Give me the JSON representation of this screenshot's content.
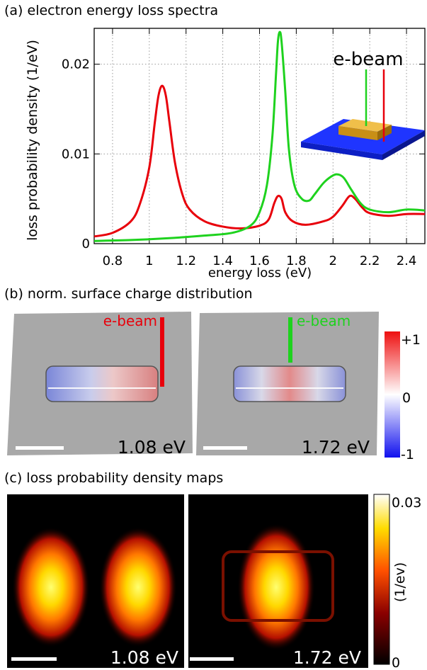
{
  "panels": {
    "a": {
      "title": "(a) electron energy loss spectra"
    },
    "b": {
      "title": "(b) norm. surface charge distribution",
      "beam_label": "e-beam",
      "energy_left": "1.08 eV",
      "energy_right": "1.72 eV",
      "colorbar_ticks": [
        "+1",
        "0",
        "-1"
      ]
    },
    "c": {
      "title": "(c) loss probability density maps",
      "energy_left": "1.08 eV",
      "energy_right": "1.72 eV",
      "colorbar_top": "0.03",
      "colorbar_bottom": "0",
      "colorbar_unit": "(1/ev)"
    }
  },
  "colors": {
    "red": "#e8000b",
    "green": "#1ed21e",
    "gray": "#999999",
    "substrate": "#1f35ff",
    "rod": "#d9a020"
  },
  "chart_data": {
    "type": "line",
    "title": "",
    "xlabel": "energy loss (eV)",
    "ylabel": "loss probability density (1/eV)",
    "xlim": [
      0.7,
      2.5
    ],
    "ylim": [
      0,
      0.024
    ],
    "xticks": [
      0.8,
      1,
      1.2,
      1.4,
      1.6,
      1.8,
      2,
      2.2,
      2.4
    ],
    "xtick_labels": [
      "0.8",
      "1",
      "1.2",
      "1.4",
      "1.6",
      "1.8",
      "2",
      "2.2",
      "2.4"
    ],
    "yticks": [
      0,
      0.01,
      0.02
    ],
    "ytick_labels": [
      "0",
      "0.01",
      "0.02"
    ],
    "grid": true,
    "inset_label": "e-beam",
    "series": [
      {
        "color": "#e8000b",
        "x": [
          0.7,
          0.8,
          0.9,
          0.95,
          1.0,
          1.03,
          1.05,
          1.07,
          1.09,
          1.11,
          1.14,
          1.18,
          1.22,
          1.3,
          1.4,
          1.5,
          1.6,
          1.65,
          1.68,
          1.7,
          1.72,
          1.74,
          1.78,
          1.85,
          1.95,
          2.0,
          2.05,
          2.09,
          2.12,
          2.16,
          2.2,
          2.3,
          2.4,
          2.5
        ],
        "y": [
          0.0008,
          0.0012,
          0.0025,
          0.0045,
          0.0085,
          0.0135,
          0.0165,
          0.0176,
          0.0165,
          0.0135,
          0.009,
          0.0055,
          0.0038,
          0.0025,
          0.0019,
          0.0017,
          0.002,
          0.0027,
          0.0045,
          0.0053,
          0.005,
          0.0035,
          0.0025,
          0.0021,
          0.0025,
          0.003,
          0.0042,
          0.0053,
          0.005,
          0.004,
          0.0034,
          0.0031,
          0.0033,
          0.0033
        ]
      },
      {
        "color": "#1ed21e",
        "x": [
          0.7,
          0.9,
          1.1,
          1.3,
          1.45,
          1.55,
          1.6,
          1.64,
          1.67,
          1.69,
          1.7,
          1.71,
          1.72,
          1.74,
          1.76,
          1.79,
          1.83,
          1.87,
          1.9,
          1.95,
          2.0,
          2.03,
          2.06,
          2.1,
          2.15,
          2.2,
          2.3,
          2.4,
          2.5
        ],
        "y": [
          0.0003,
          0.0004,
          0.0006,
          0.0009,
          0.0012,
          0.002,
          0.0035,
          0.0065,
          0.012,
          0.019,
          0.0225,
          0.0236,
          0.0225,
          0.017,
          0.0105,
          0.0065,
          0.005,
          0.0048,
          0.0055,
          0.0068,
          0.0076,
          0.0077,
          0.0073,
          0.006,
          0.0045,
          0.0038,
          0.0035,
          0.0038,
          0.0037
        ]
      }
    ]
  }
}
